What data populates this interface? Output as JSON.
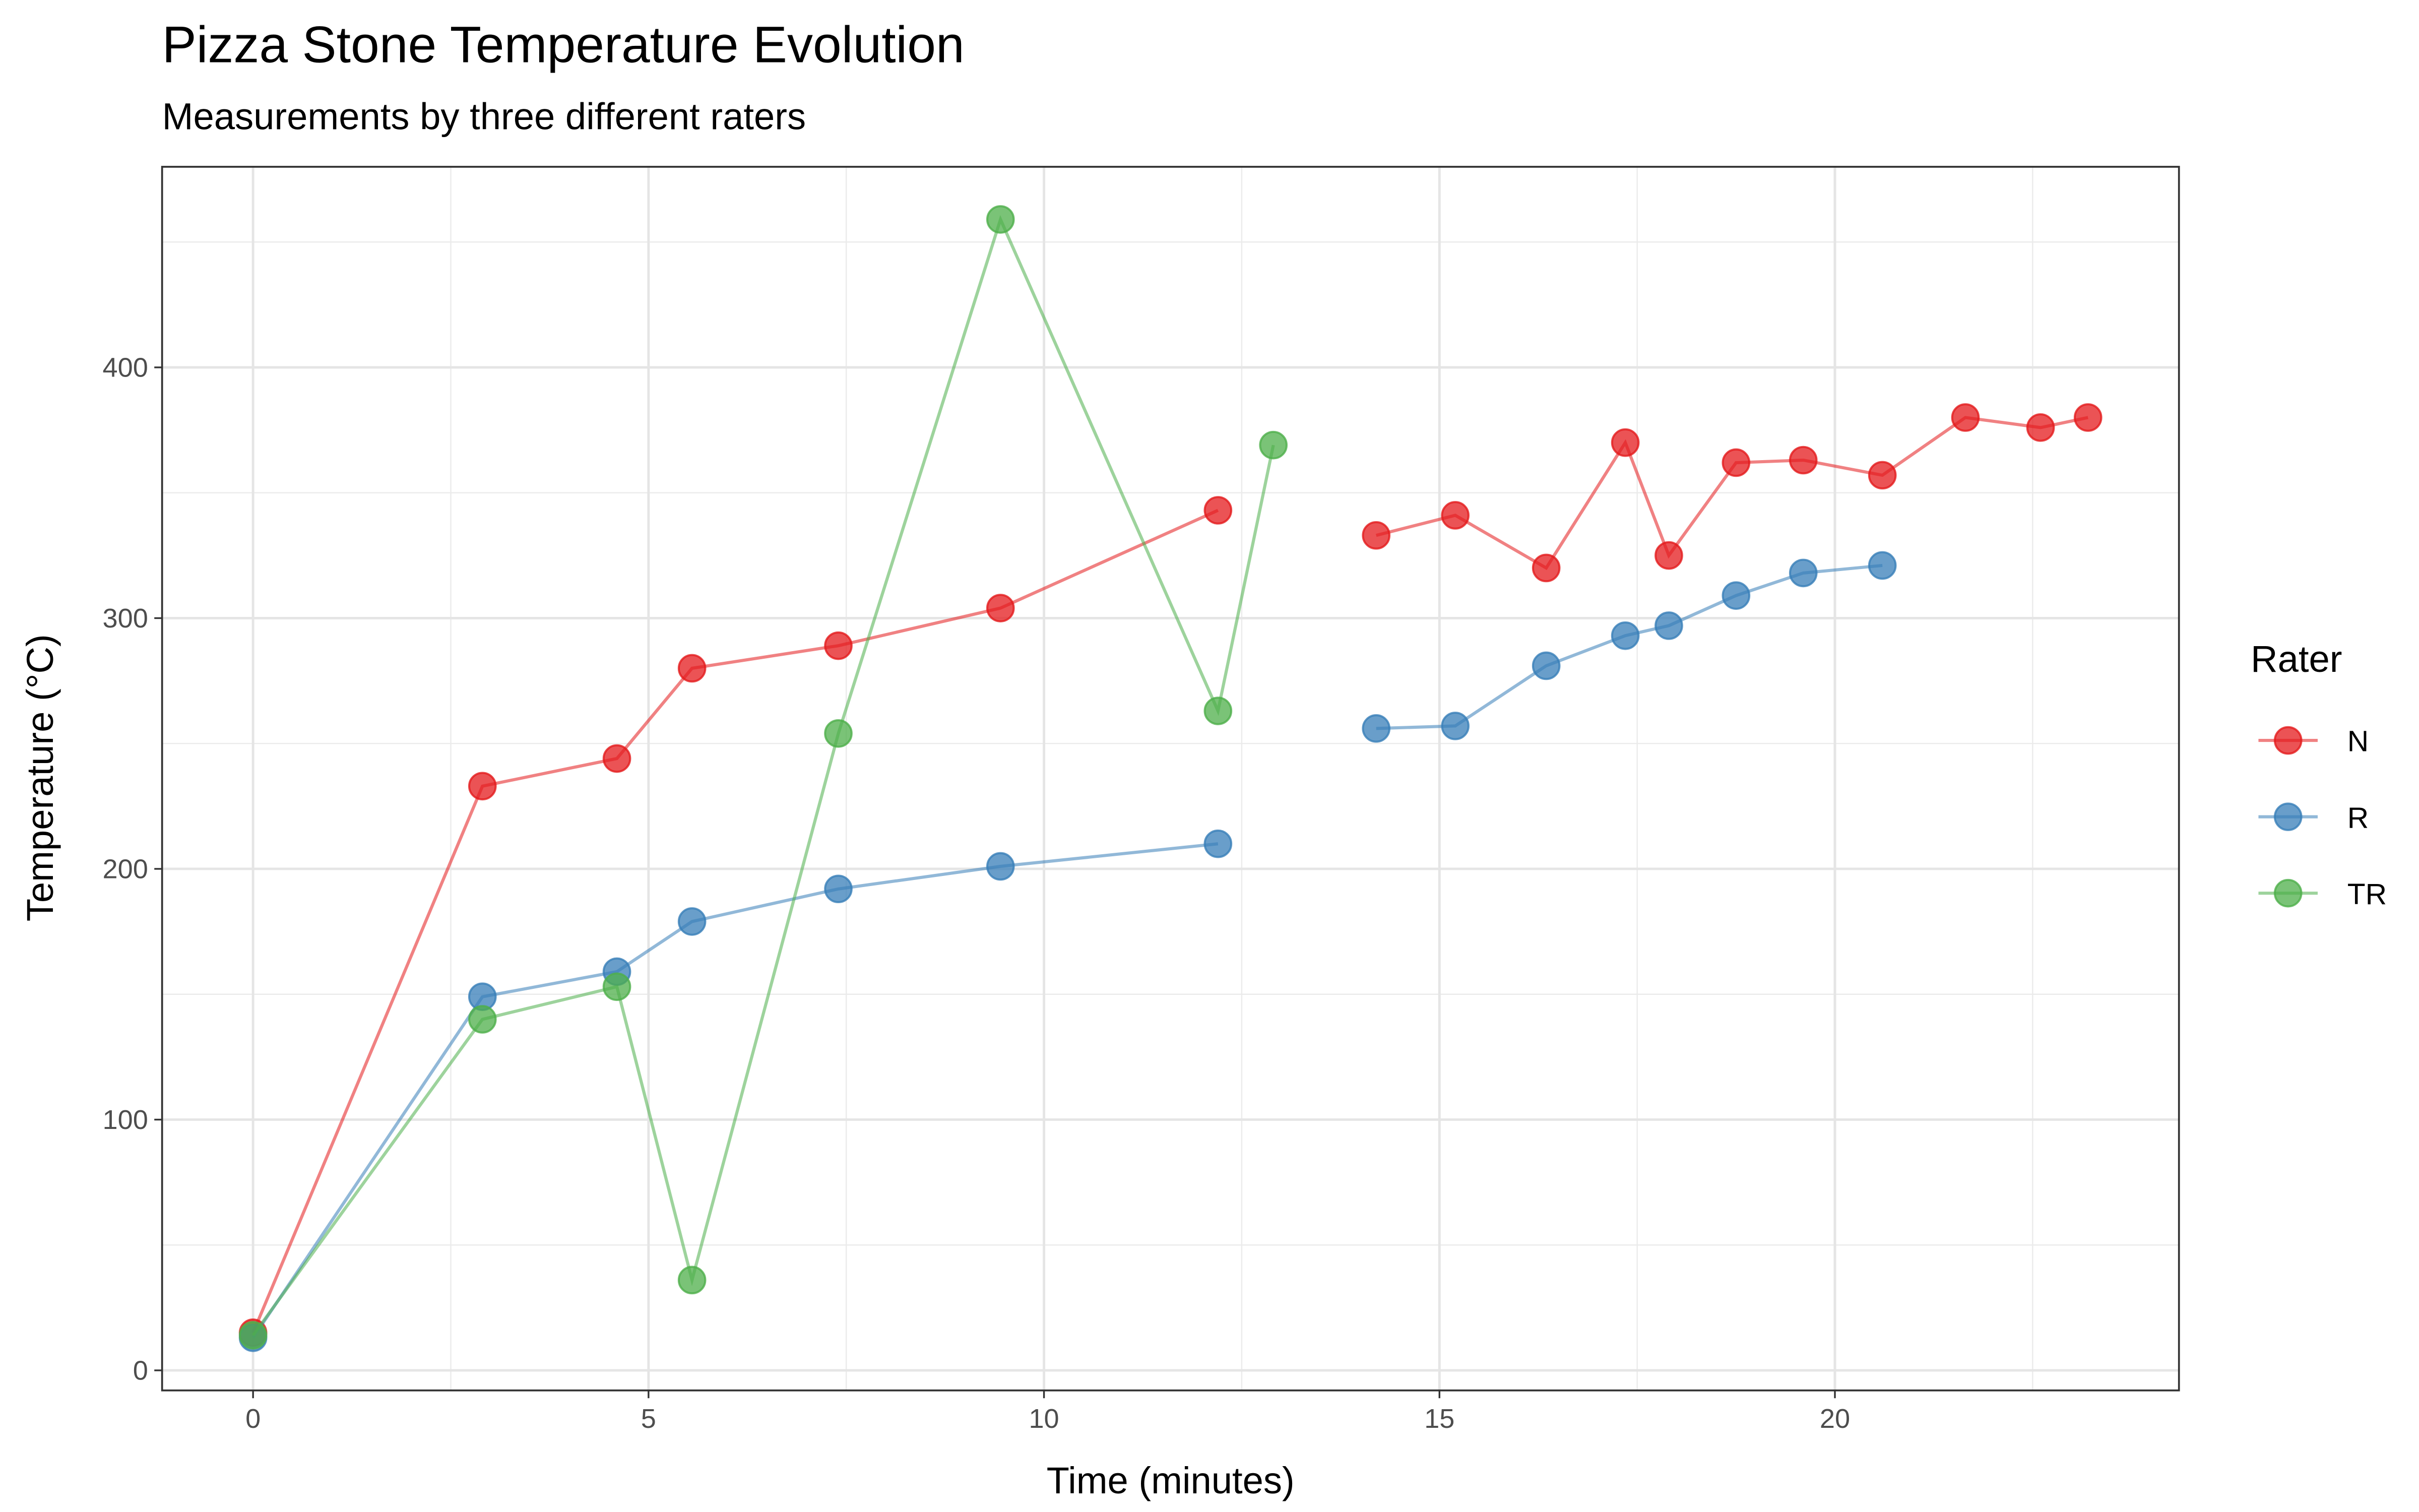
{
  "chart_data": {
    "type": "line",
    "title": "Pizza Stone Temperature Evolution",
    "subtitle": "Measurements by three different raters",
    "xlabel": "Time (minutes)",
    "ylabel": "Temperature (°C)",
    "xlim": [
      -1.15,
      24.35
    ],
    "ylim": [
      -8,
      480
    ],
    "x_ticks": [
      0,
      5,
      10,
      15,
      20
    ],
    "x_tick_labels": [
      "0",
      "5",
      "10",
      "15",
      "20"
    ],
    "y_ticks": [
      0,
      100,
      200,
      300,
      400
    ],
    "y_tick_labels": [
      "0",
      "100",
      "200",
      "300",
      "400"
    ],
    "x_minor": [
      2.5,
      7.5,
      12.5,
      17.5,
      22.5
    ],
    "y_minor": [
      50,
      150,
      250,
      350,
      450
    ],
    "grid": true,
    "legend": {
      "title": "Rater",
      "position": "right"
    },
    "series": [
      {
        "name": "N",
        "color": "#E41A1C",
        "segments": [
          [
            [
              0,
              15
            ],
            [
              2.9,
              233
            ],
            [
              4.6,
              244
            ],
            [
              5.55,
              280
            ],
            [
              7.4,
              289
            ],
            [
              9.45,
              304
            ],
            [
              12.2,
              343
            ]
          ],
          [
            [
              14.2,
              333
            ],
            [
              15.2,
              341
            ],
            [
              16.35,
              320
            ],
            [
              17.35,
              370
            ],
            [
              17.9,
              325
            ],
            [
              18.75,
              362
            ],
            [
              19.6,
              363
            ],
            [
              20.6,
              357
            ],
            [
              21.65,
              380
            ],
            [
              22.6,
              376
            ],
            [
              23.2,
              380
            ]
          ]
        ]
      },
      {
        "name": "R",
        "color": "#377EB8",
        "segments": [
          [
            [
              0,
              13
            ],
            [
              2.9,
              149
            ],
            [
              4.6,
              159
            ],
            [
              5.55,
              179
            ],
            [
              7.4,
              192
            ],
            [
              9.45,
              201
            ],
            [
              12.2,
              210
            ]
          ],
          [
            [
              14.2,
              256
            ],
            [
              15.2,
              257
            ],
            [
              16.35,
              281
            ],
            [
              17.35,
              293
            ],
            [
              17.9,
              297
            ],
            [
              18.75,
              309
            ],
            [
              19.6,
              318
            ],
            [
              20.6,
              321
            ]
          ]
        ]
      },
      {
        "name": "TR",
        "color": "#4DAF4A",
        "segments": [
          [
            [
              0,
              14
            ],
            [
              2.9,
              140
            ],
            [
              4.6,
              153
            ],
            [
              5.55,
              36
            ],
            [
              7.4,
              254
            ],
            [
              9.45,
              459
            ],
            [
              12.2,
              263
            ],
            [
              12.9,
              369
            ]
          ]
        ]
      }
    ]
  }
}
